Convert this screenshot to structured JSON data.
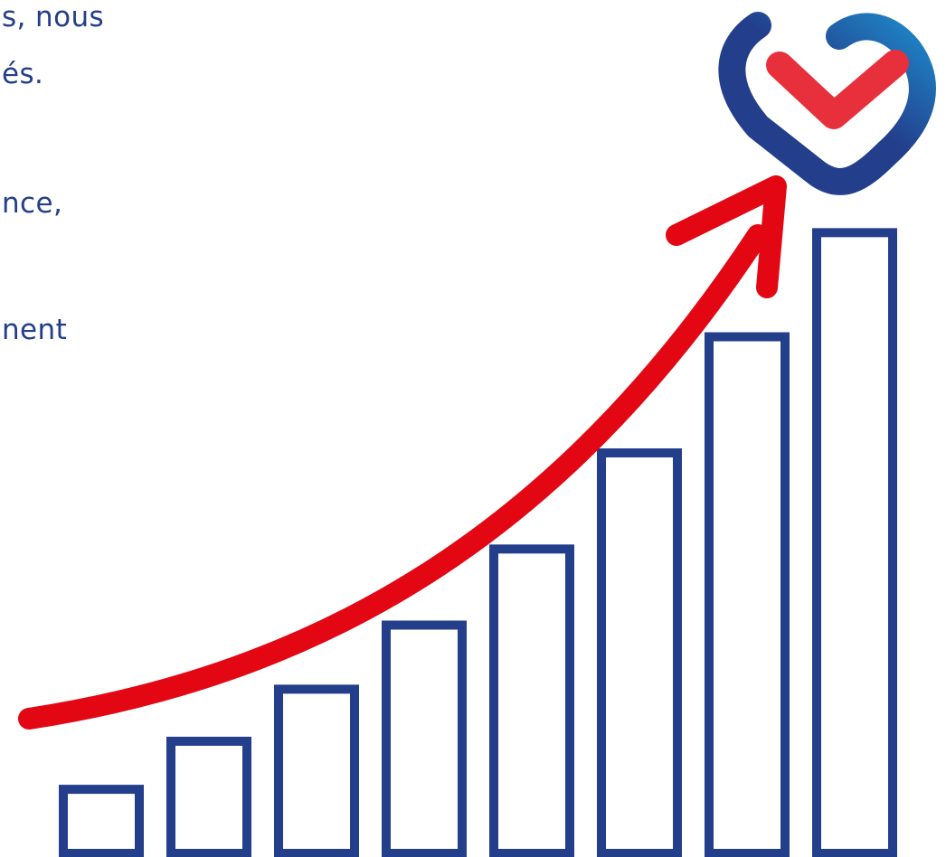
{
  "text_fragments": [
    "s, nous",
    "és.",
    "nce,",
    "nent"
  ],
  "graphic": {
    "bar_heights_relative": [
      0.16,
      0.28,
      0.41,
      0.57,
      0.76,
      1.0,
      1.29,
      1.55
    ],
    "bar_color": "#233e8b",
    "bar_fill": "#ffffff",
    "arrow_color": "#e30613",
    "logo": {
      "name": "heart-check-logo",
      "outer_color_dark": "#233e8b",
      "outer_color_light": "#1e88c9",
      "check_color": "#e8303d"
    }
  }
}
